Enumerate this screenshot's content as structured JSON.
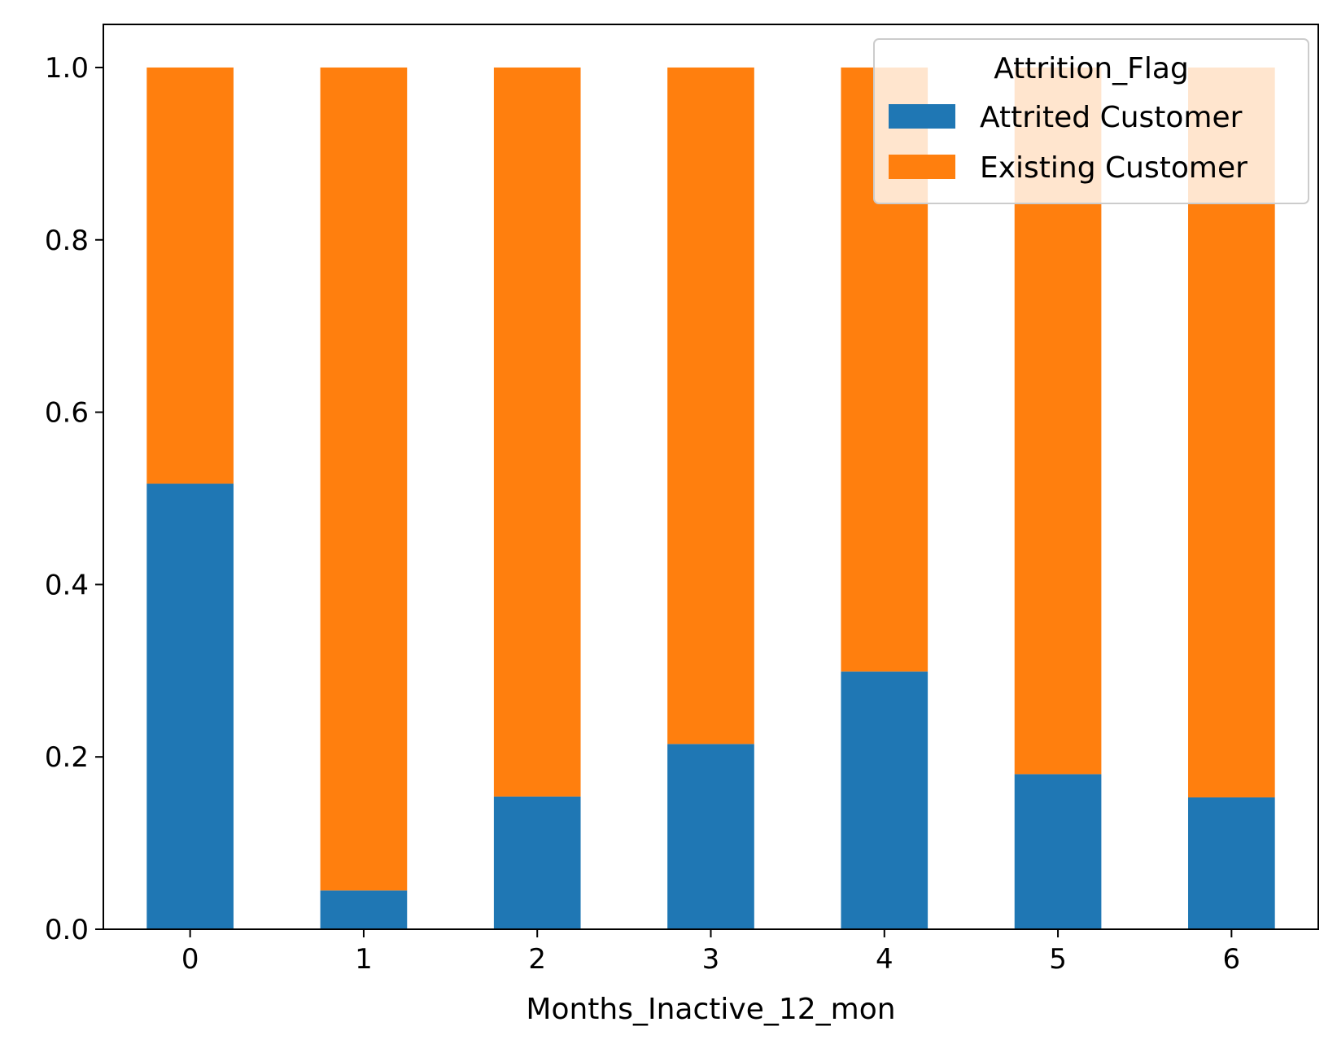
{
  "chart_data": {
    "type": "bar",
    "stacked": true,
    "categories": [
      "0",
      "1",
      "2",
      "3",
      "4",
      "5",
      "6"
    ],
    "series": [
      {
        "name": "Attrited Customer",
        "color": "#1f77b4",
        "values": [
          0.517,
          0.045,
          0.154,
          0.215,
          0.299,
          0.18,
          0.153
        ]
      },
      {
        "name": "Existing Customer",
        "color": "#ff7f0e",
        "values": [
          0.483,
          0.955,
          0.846,
          0.785,
          0.701,
          0.82,
          0.847
        ]
      }
    ],
    "title": "",
    "xlabel": "Months_Inactive_12_mon",
    "ylabel": "",
    "ylim": [
      0,
      1.05
    ],
    "yticks": [
      "0.0",
      "0.2",
      "0.4",
      "0.6",
      "0.8",
      "1.0"
    ],
    "grid": false,
    "legend": {
      "title": "Attrition_Flag",
      "placement": "top-right"
    }
  }
}
